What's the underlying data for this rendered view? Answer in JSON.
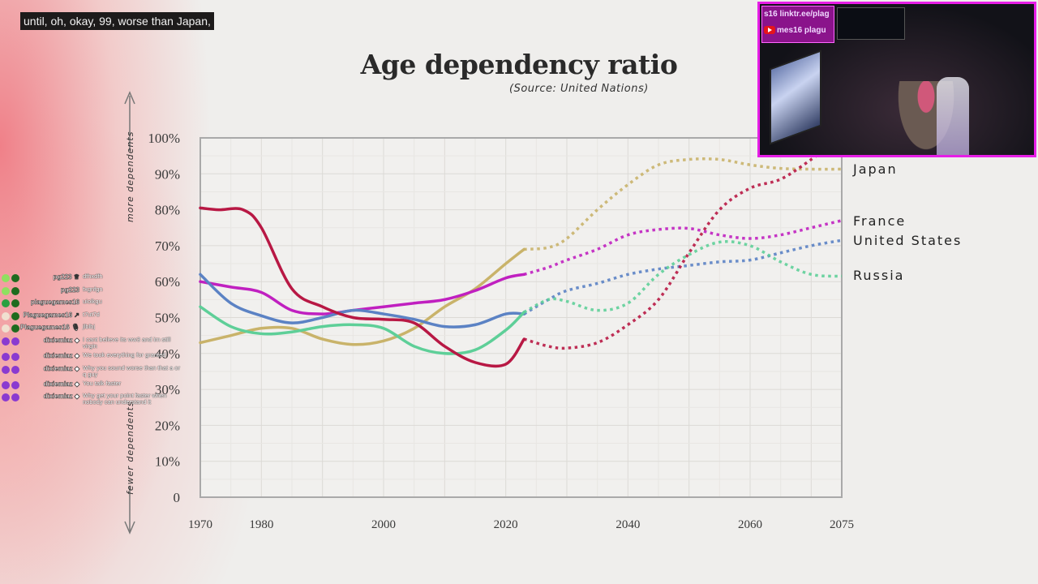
{
  "caption": "until, oh, okay, 99, worse than Japan,",
  "title": "Age dependency ratio",
  "source": "(Source: United Nations)",
  "chart_data": {
    "type": "line",
    "title": "Age dependency ratio",
    "subtitle": "(Source: United Nations)",
    "xlabel": "",
    "ylabel_top": "more dependents",
    "ylabel_bottom": "fewer dependents",
    "xlim": [
      1970,
      2075
    ],
    "ylim": [
      0,
      100
    ],
    "x_ticks": [
      1970,
      1980,
      2000,
      2020,
      2040,
      2060,
      2075
    ],
    "y_ticks": [
      0,
      10,
      20,
      30,
      40,
      50,
      60,
      70,
      80,
      90,
      100
    ],
    "y_tick_labels": [
      "0",
      "10%",
      "20%",
      "30%",
      "40%",
      "50%",
      "60%",
      "70%",
      "80%",
      "90%",
      "100%"
    ],
    "grid": true,
    "legend": "right (labels at line ends)",
    "historical_end": 2023,
    "series": [
      {
        "name": "Japan",
        "color": "#c9b36a",
        "label": "Japan",
        "historical": [
          [
            1970,
            43
          ],
          [
            1975,
            45
          ],
          [
            1980,
            47
          ],
          [
            1985,
            47
          ],
          [
            1990,
            44
          ],
          [
            1995,
            42.5
          ],
          [
            2000,
            43.5
          ],
          [
            2005,
            47
          ],
          [
            2010,
            53
          ],
          [
            2015,
            58
          ],
          [
            2020,
            65
          ],
          [
            2023,
            69
          ]
        ],
        "projected": [
          [
            2023,
            69
          ],
          [
            2027,
            69.5
          ],
          [
            2030,
            72
          ],
          [
            2035,
            80
          ],
          [
            2040,
            87
          ],
          [
            2045,
            92.5
          ],
          [
            2050,
            94
          ],
          [
            2055,
            94
          ],
          [
            2060,
            92.5
          ],
          [
            2065,
            91.5
          ],
          [
            2070,
            91.3
          ],
          [
            2075,
            91.3
          ]
        ]
      },
      {
        "name": "France",
        "color": "#c020c0",
        "label": "France",
        "historical": [
          [
            1970,
            60
          ],
          [
            1975,
            58.5
          ],
          [
            1980,
            57
          ],
          [
            1985,
            52
          ],
          [
            1990,
            51
          ],
          [
            1995,
            52
          ],
          [
            2000,
            53
          ],
          [
            2005,
            54
          ],
          [
            2010,
            55
          ],
          [
            2015,
            57.5
          ],
          [
            2020,
            61
          ],
          [
            2023,
            62
          ]
        ],
        "projected": [
          [
            2023,
            62
          ],
          [
            2027,
            64
          ],
          [
            2030,
            66
          ],
          [
            2035,
            69
          ],
          [
            2040,
            73
          ],
          [
            2045,
            74.5
          ],
          [
            2050,
            74.8
          ],
          [
            2055,
            73
          ],
          [
            2060,
            72
          ],
          [
            2065,
            73
          ],
          [
            2070,
            75
          ],
          [
            2075,
            77
          ]
        ]
      },
      {
        "name": "United States",
        "color": "#5b82c4",
        "label": "United States",
        "historical": [
          [
            1970,
            62
          ],
          [
            1975,
            54
          ],
          [
            1980,
            50.5
          ],
          [
            1985,
            48.5
          ],
          [
            1990,
            50
          ],
          [
            1995,
            52
          ],
          [
            2000,
            51
          ],
          [
            2005,
            49.5
          ],
          [
            2010,
            47.5
          ],
          [
            2015,
            48
          ],
          [
            2020,
            51
          ],
          [
            2023,
            51
          ]
        ],
        "projected": [
          [
            2023,
            51
          ],
          [
            2027,
            55
          ],
          [
            2030,
            57.5
          ],
          [
            2035,
            59.5
          ],
          [
            2040,
            62
          ],
          [
            2045,
            63.5
          ],
          [
            2050,
            64.5
          ],
          [
            2055,
            65.5
          ],
          [
            2060,
            66
          ],
          [
            2065,
            68
          ],
          [
            2070,
            70
          ],
          [
            2075,
            71.5
          ]
        ]
      },
      {
        "name": "Russia",
        "color": "#5ecf98",
        "label": "Russia",
        "historical": [
          [
            1970,
            53
          ],
          [
            1975,
            47.5
          ],
          [
            1980,
            45.5
          ],
          [
            1985,
            46
          ],
          [
            1990,
            47.5
          ],
          [
            1995,
            48
          ],
          [
            2000,
            47
          ],
          [
            2005,
            42
          ],
          [
            2010,
            40
          ],
          [
            2015,
            41
          ],
          [
            2020,
            46.5
          ],
          [
            2023,
            51.5
          ]
        ],
        "projected": [
          [
            2023,
            51.5
          ],
          [
            2027,
            55
          ],
          [
            2030,
            54.5
          ],
          [
            2035,
            52
          ],
          [
            2040,
            54
          ],
          [
            2045,
            62
          ],
          [
            2050,
            67.5
          ],
          [
            2055,
            71
          ],
          [
            2060,
            70
          ],
          [
            2065,
            65.5
          ],
          [
            2070,
            62
          ],
          [
            2075,
            61.5
          ]
        ]
      },
      {
        "name": "China (unlabeled)",
        "color": "#b81844",
        "label": "",
        "historical": [
          [
            1970,
            80.5
          ],
          [
            1973,
            80
          ],
          [
            1977,
            80
          ],
          [
            1980,
            75
          ],
          [
            1985,
            58
          ],
          [
            1990,
            53
          ],
          [
            1995,
            50
          ],
          [
            2000,
            49.5
          ],
          [
            2005,
            48.5
          ],
          [
            2010,
            42
          ],
          [
            2015,
            37.5
          ],
          [
            2020,
            37
          ],
          [
            2023,
            44
          ]
        ],
        "projected": [
          [
            2023,
            44
          ],
          [
            2027,
            42
          ],
          [
            2030,
            41.5
          ],
          [
            2035,
            43
          ],
          [
            2040,
            48
          ],
          [
            2045,
            55
          ],
          [
            2050,
            68
          ],
          [
            2055,
            80
          ],
          [
            2060,
            86
          ],
          [
            2065,
            88.5
          ],
          [
            2070,
            94
          ],
          [
            2073,
            98
          ]
        ]
      }
    ]
  },
  "webcam": {
    "overlay_line1": "s16 linktr.ee/plag",
    "overlay_line2": "mes16 plagu",
    "overlay_icon": "youtube-icon"
  },
  "chat": [
    {
      "user": "pg223",
      "badge_icon": "crown-icon",
      "badge_colors": [
        "#8fe060",
        "#1e6b1e"
      ],
      "message": "dfhxdfh"
    },
    {
      "user": "pg223",
      "badge_icon": "",
      "badge_colors": [
        "#8fe060",
        "#1e6b1e"
      ],
      "message": "fxgnfgn"
    },
    {
      "user": "plaguegames16",
      "badge_icon": "",
      "badge_colors": [
        "#2aa040",
        "#1e6b1e"
      ],
      "message": "uiolkgu"
    },
    {
      "user": "Plaguegames16",
      "badge_icon": "arrow-icon",
      "badge_colors": [
        "#f0e0d0",
        "#1e6b1e"
      ],
      "message": "t7ut7d"
    },
    {
      "user": "Plaguegames16",
      "badge_icon": "mic-icon",
      "badge_colors": [
        "#f0e0d0",
        "#1e6b1e"
      ],
      "message": "jlblbj"
    },
    {
      "user": "dixiemiaz",
      "badge_icon": "gem-icon",
      "badge_colors": [
        "#8a3ad0",
        "#8a3ad0"
      ],
      "message": "I cant believe its ww3 and im still virgin"
    },
    {
      "user": "dixiemiaz",
      "badge_icon": "gem-icon",
      "badge_colors": [
        "#8a3ad0",
        "#8a3ad0"
      ],
      "message": "We took everything for granted"
    },
    {
      "user": "dixiemiaz",
      "badge_icon": "gem-icon",
      "badge_colors": [
        "#8a3ad0",
        "#8a3ad0"
      ],
      "message": "Why you sound worse than that a or q guy"
    },
    {
      "user": "dixiemiaz",
      "badge_icon": "gem-icon",
      "badge_colors": [
        "#8a3ad0",
        "#8a3ad0"
      ],
      "message": "You talk faster"
    },
    {
      "user": "dixiemiaz",
      "badge_icon": "gem-icon",
      "badge_colors": [
        "#8a3ad0",
        "#8a3ad0"
      ],
      "message": "Why get your point faster when nobody can understand it"
    }
  ]
}
